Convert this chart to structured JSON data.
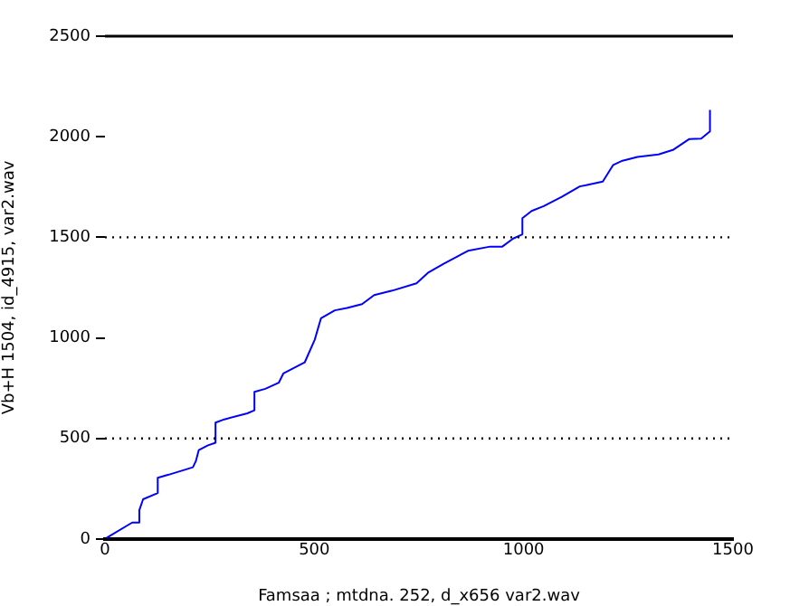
{
  "chart_data": {
    "type": "line",
    "xlabel": "Famsaa ; mtdna. 252, d_x656 var2.wav",
    "ylabel": "Vb+H 1504, id_4915, var2.wav",
    "xlim": [
      0,
      1500
    ],
    "xticks": [
      0,
      500,
      1000,
      1500
    ],
    "ylim": [
      0,
      2500
    ],
    "yticks": [
      0,
      500,
      1000,
      1500,
      2000,
      2500
    ],
    "grid": false,
    "legend": false,
    "marker": "none",
    "line_style": "solid",
    "ref_lines": [
      {
        "axis": "y",
        "value": 500,
        "line_style": "dotted",
        "color": "#000000"
      },
      {
        "axis": "y",
        "value": 1500,
        "line_style": "dotted",
        "color": "#000000"
      },
      {
        "axis": "y",
        "value": 2500,
        "line_style": "solid",
        "color": "#000000"
      }
    ],
    "series": [
      {
        "color": "#0000ff",
        "x": [
          4,
          65,
          82,
          82,
          91,
          126,
          126,
          152,
          210,
          217,
          224,
          246,
          264,
          264,
          285,
          340,
          357,
          357,
          383,
          415,
          426,
          477,
          501,
          516,
          549,
          578,
          614,
          643,
          686,
          744,
          773,
          809,
          867,
          920,
          949,
          975,
          997,
          997,
          1019,
          1048,
          1091,
          1134,
          1149,
          1189,
          1214,
          1236,
          1272,
          1322,
          1358,
          1395,
          1424,
          1445,
          1445
        ],
        "values": [
          6,
          82,
          82,
          143,
          198,
          229,
          305,
          320,
          357,
          387,
          442,
          466,
          479,
          579,
          595,
          625,
          640,
          732,
          747,
          777,
          823,
          878,
          991,
          1098,
          1137,
          1149,
          1168,
          1213,
          1235,
          1271,
          1326,
          1369,
          1433,
          1454,
          1454,
          1494,
          1515,
          1595,
          1631,
          1655,
          1701,
          1753,
          1759,
          1777,
          1860,
          1881,
          1900,
          1912,
          1936,
          1988,
          1991,
          2027,
          2134
        ]
      }
    ]
  }
}
